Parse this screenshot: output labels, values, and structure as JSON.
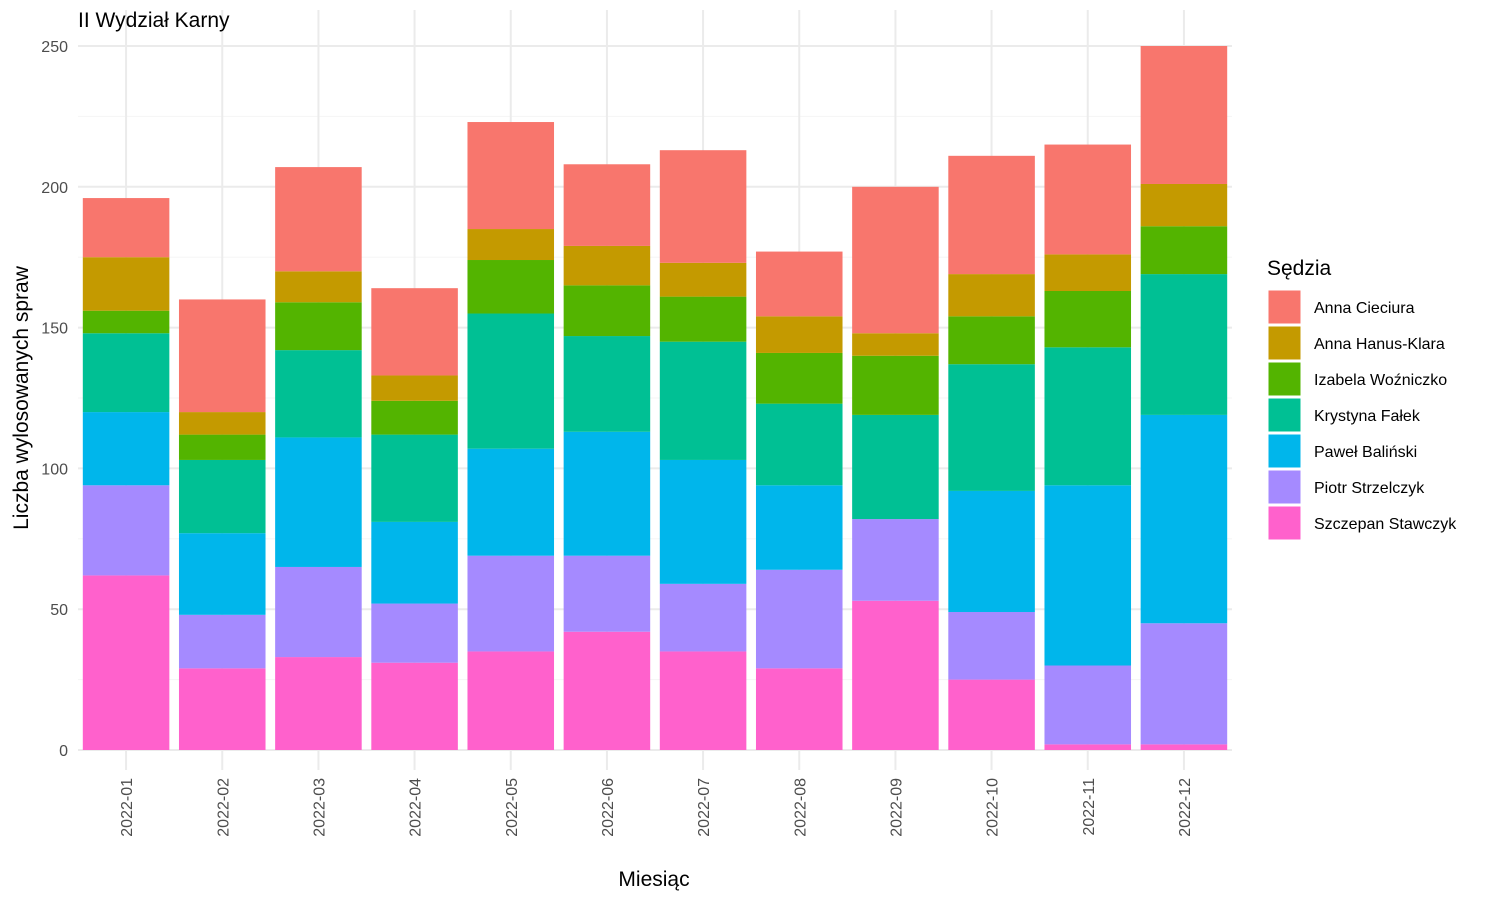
{
  "chart_data": {
    "type": "bar",
    "stacked": true,
    "title": "II Wydział Karny",
    "xlabel": "Miesiąc",
    "ylabel": "Liczba wylosowanych spraw",
    "ylim": [
      0,
      260
    ],
    "yticks": [
      0,
      50,
      100,
      150,
      200,
      250
    ],
    "grid": true,
    "legend_title": "Sędzia",
    "legend_position": "right",
    "categories": [
      "2022-01",
      "2022-02",
      "2022-03",
      "2022-04",
      "2022-05",
      "2022-06",
      "2022-07",
      "2022-08",
      "2022-09",
      "2022-10",
      "2022-11",
      "2022-12"
    ],
    "series": [
      {
        "name": "Szczepan Stawczyk",
        "color": "#FF61CC",
        "values": [
          62,
          29,
          33,
          31,
          35,
          42,
          35,
          29,
          53,
          25,
          2,
          2
        ]
      },
      {
        "name": "Piotr Strzelczyk",
        "color": "#A58AFF",
        "values": [
          32,
          19,
          32,
          21,
          34,
          27,
          24,
          35,
          29,
          24,
          28,
          43
        ]
      },
      {
        "name": "Paweł Baliński",
        "color": "#00B6EB",
        "values": [
          26,
          29,
          46,
          29,
          38,
          44,
          44,
          30,
          0,
          43,
          64,
          74
        ]
      },
      {
        "name": "Krystyna Fałek",
        "color": "#00C094",
        "values": [
          28,
          26,
          31,
          31,
          48,
          34,
          42,
          29,
          37,
          45,
          49,
          50
        ]
      },
      {
        "name": "Izabela Woźniczko",
        "color": "#53B400",
        "values": [
          8,
          9,
          17,
          12,
          19,
          18,
          16,
          18,
          21,
          17,
          20,
          17
        ]
      },
      {
        "name": "Anna Hanus-Klara",
        "color": "#C49A00",
        "values": [
          19,
          8,
          11,
          9,
          11,
          14,
          12,
          13,
          8,
          15,
          13,
          15
        ]
      },
      {
        "name": "Anna Cieciura",
        "color": "#F8766D",
        "values": [
          21,
          40,
          37,
          31,
          38,
          29,
          40,
          23,
          52,
          42,
          39,
          49
        ]
      }
    ],
    "legend_order": [
      "Anna Cieciura",
      "Anna Hanus-Klara",
      "Izabela Woźniczko",
      "Krystyna Fałek",
      "Paweł Baliński",
      "Piotr Strzelczyk",
      "Szczepan Stawczyk"
    ]
  }
}
